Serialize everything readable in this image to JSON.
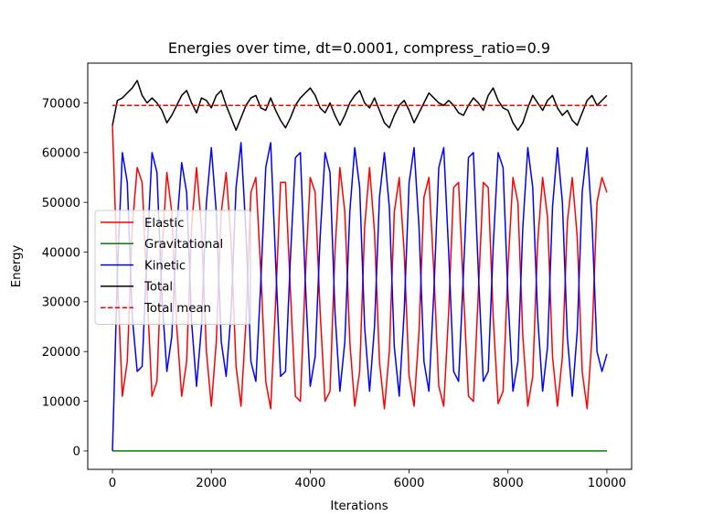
{
  "chart_data": {
    "type": "line",
    "title": "Energies over time, dt=0.0001, compress_ratio=0.9",
    "xlabel": "Iterations",
    "ylabel": "Energy",
    "xlim": [
      -500,
      10500
    ],
    "ylim": [
      -3700,
      78000
    ],
    "xticks": [
      0,
      2000,
      4000,
      6000,
      8000,
      10000
    ],
    "yticks": [
      0,
      10000,
      20000,
      30000,
      40000,
      50000,
      60000,
      70000
    ],
    "grid": false,
    "legend_position": "center-left",
    "x": [
      0,
      100,
      200,
      300,
      400,
      500,
      600,
      700,
      800,
      900,
      1000,
      1100,
      1200,
      1300,
      1400,
      1500,
      1600,
      1700,
      1800,
      1900,
      2000,
      2100,
      2200,
      2300,
      2400,
      2500,
      2600,
      2700,
      2800,
      2900,
      3000,
      3100,
      3200,
      3300,
      3400,
      3500,
      3600,
      3700,
      3800,
      3900,
      4000,
      4100,
      4200,
      4300,
      4400,
      4500,
      4600,
      4700,
      4800,
      4900,
      5000,
      5100,
      5200,
      5300,
      5400,
      5500,
      5600,
      5700,
      5800,
      5900,
      6000,
      6100,
      6200,
      6300,
      6400,
      6500,
      6600,
      6700,
      6800,
      6900,
      7000,
      7100,
      7200,
      7300,
      7400,
      7500,
      7600,
      7700,
      7800,
      7900,
      8000,
      8100,
      8200,
      8300,
      8400,
      8500,
      8600,
      8700,
      8800,
      8900,
      9000,
      9100,
      9200,
      9300,
      9400,
      9500,
      9600,
      9700,
      9800,
      9900,
      10000
    ],
    "series": [
      {
        "name": "Elastic",
        "color": "#ff0000",
        "style": "solid",
        "values": [
          65500,
          35000,
          11000,
          18000,
          45000,
          57000,
          54000,
          32000,
          11000,
          14000,
          40000,
          56000,
          48000,
          25000,
          11000,
          18000,
          45000,
          57000,
          45000,
          20000,
          9000,
          22000,
          48000,
          56000,
          42000,
          17000,
          9000,
          26000,
          52000,
          55000,
          36000,
          14000,
          8500,
          30000,
          54000,
          54000,
          32000,
          11000,
          10000,
          35000,
          55000,
          52000,
          28000,
          10000,
          12000,
          40000,
          57000,
          48000,
          22000,
          9000,
          16000,
          45000,
          57000,
          44000,
          18000,
          8500,
          20000,
          48000,
          55000,
          40000,
          15000,
          9000,
          24000,
          51000,
          55000,
          36000,
          13000,
          9000,
          28000,
          53000,
          54000,
          32000,
          11000,
          10000,
          32000,
          54000,
          53000,
          27000,
          9500,
          12000,
          37000,
          55000,
          50000,
          23000,
          9000,
          15000,
          42000,
          55000,
          47000,
          19000,
          9000,
          19000,
          46000,
          55000,
          43000,
          16000,
          8500,
          23000,
          50000,
          55000,
          52000
        ]
      },
      {
        "name": "Gravitational",
        "color": "#008000",
        "style": "solid",
        "values": [
          0,
          0,
          0,
          0,
          0,
          0,
          0,
          0,
          0,
          0,
          0,
          0,
          0,
          0,
          0,
          0,
          0,
          0,
          0,
          0,
          0,
          0,
          0,
          0,
          0,
          0,
          0,
          0,
          0,
          0,
          0,
          0,
          0,
          0,
          0,
          0,
          0,
          0,
          0,
          0,
          0,
          0,
          0,
          0,
          0,
          0,
          0,
          0,
          0,
          0,
          0,
          0,
          0,
          0,
          0,
          0,
          0,
          0,
          0,
          0,
          0,
          0,
          0,
          0,
          0,
          0,
          0,
          0,
          0,
          0,
          0,
          0,
          0,
          0,
          0,
          0,
          0,
          0,
          0,
          0,
          0,
          0,
          0,
          0,
          0,
          0,
          0,
          0,
          0,
          0,
          0,
          0,
          0,
          0,
          0,
          0,
          0,
          0,
          0,
          0,
          0
        ]
      },
      {
        "name": "Kinetic",
        "color": "#0000ff",
        "style": "solid",
        "values": [
          0,
          36000,
          60000,
          54000,
          27000,
          16000,
          17000,
          40000,
          60000,
          56000,
          31000,
          16000,
          23000,
          45000,
          58000,
          52000,
          26000,
          13000,
          25000,
          50000,
          61000,
          48000,
          22000,
          15000,
          28000,
          53000,
          62000,
          44000,
          18000,
          14000,
          34000,
          57000,
          62000,
          38000,
          15000,
          16000,
          39000,
          59000,
          60000,
          34000,
          13000,
          19000,
          43000,
          60000,
          56000,
          28000,
          12000,
          22000,
          48000,
          61000,
          53000,
          25000,
          12000,
          25000,
          51000,
          60000,
          49000,
          21000,
          11000,
          28000,
          54000,
          61000,
          45000,
          18000,
          12000,
          32000,
          57000,
          61000,
          40000,
          16000,
          14000,
          36000,
          59000,
          60000,
          36000,
          14000,
          16000,
          41000,
          60000,
          57000,
          31000,
          12000,
          18000,
          45000,
          61000,
          53000,
          27000,
          12000,
          21000,
          49000,
          61000,
          50000,
          23000,
          11000,
          24000,
          52000,
          61000,
          46000,
          20000,
          16000,
          19500
        ]
      },
      {
        "name": "Total",
        "color": "#000000",
        "style": "solid",
        "values": [
          65500,
          70500,
          71000,
          72000,
          73000,
          74500,
          71500,
          70000,
          71000,
          70000,
          68500,
          66000,
          67500,
          69500,
          71500,
          72500,
          70000,
          68000,
          71000,
          70500,
          69000,
          71500,
          72500,
          69500,
          67000,
          64500,
          67000,
          69500,
          71000,
          71500,
          69000,
          68500,
          71000,
          68500,
          66500,
          65000,
          67000,
          69500,
          71000,
          72000,
          73000,
          71500,
          69000,
          68000,
          70000,
          67500,
          65500,
          67500,
          70000,
          71500,
          72500,
          70000,
          69000,
          71000,
          68500,
          66000,
          65000,
          67500,
          69500,
          70500,
          68500,
          66000,
          68000,
          70000,
          72000,
          71000,
          70000,
          69500,
          70500,
          69500,
          68000,
          67500,
          69500,
          71000,
          70000,
          68500,
          71500,
          73000,
          70500,
          69000,
          68500,
          66000,
          64500,
          66000,
          69000,
          71500,
          70000,
          68500,
          70500,
          71500,
          69000,
          67500,
          68500,
          66500,
          65500,
          68000,
          70500,
          71500,
          69500,
          70500,
          71500
        ]
      },
      {
        "name": "Total mean",
        "color": "#ff0000",
        "style": "dashed",
        "values": [
          69500,
          69500,
          69500,
          69500,
          69500,
          69500,
          69500,
          69500,
          69500,
          69500,
          69500,
          69500,
          69500,
          69500,
          69500,
          69500,
          69500,
          69500,
          69500,
          69500,
          69500,
          69500,
          69500,
          69500,
          69500,
          69500,
          69500,
          69500,
          69500,
          69500,
          69500,
          69500,
          69500,
          69500,
          69500,
          69500,
          69500,
          69500,
          69500,
          69500,
          69500,
          69500,
          69500,
          69500,
          69500,
          69500,
          69500,
          69500,
          69500,
          69500,
          69500,
          69500,
          69500,
          69500,
          69500,
          69500,
          69500,
          69500,
          69500,
          69500,
          69500,
          69500,
          69500,
          69500,
          69500,
          69500,
          69500,
          69500,
          69500,
          69500,
          69500,
          69500,
          69500,
          69500,
          69500,
          69500,
          69500,
          69500,
          69500,
          69500,
          69500,
          69500,
          69500,
          69500,
          69500,
          69500,
          69500,
          69500,
          69500,
          69500,
          69500,
          69500,
          69500,
          69500,
          69500,
          69500,
          69500,
          69500,
          69500,
          69500,
          69500
        ]
      }
    ]
  }
}
